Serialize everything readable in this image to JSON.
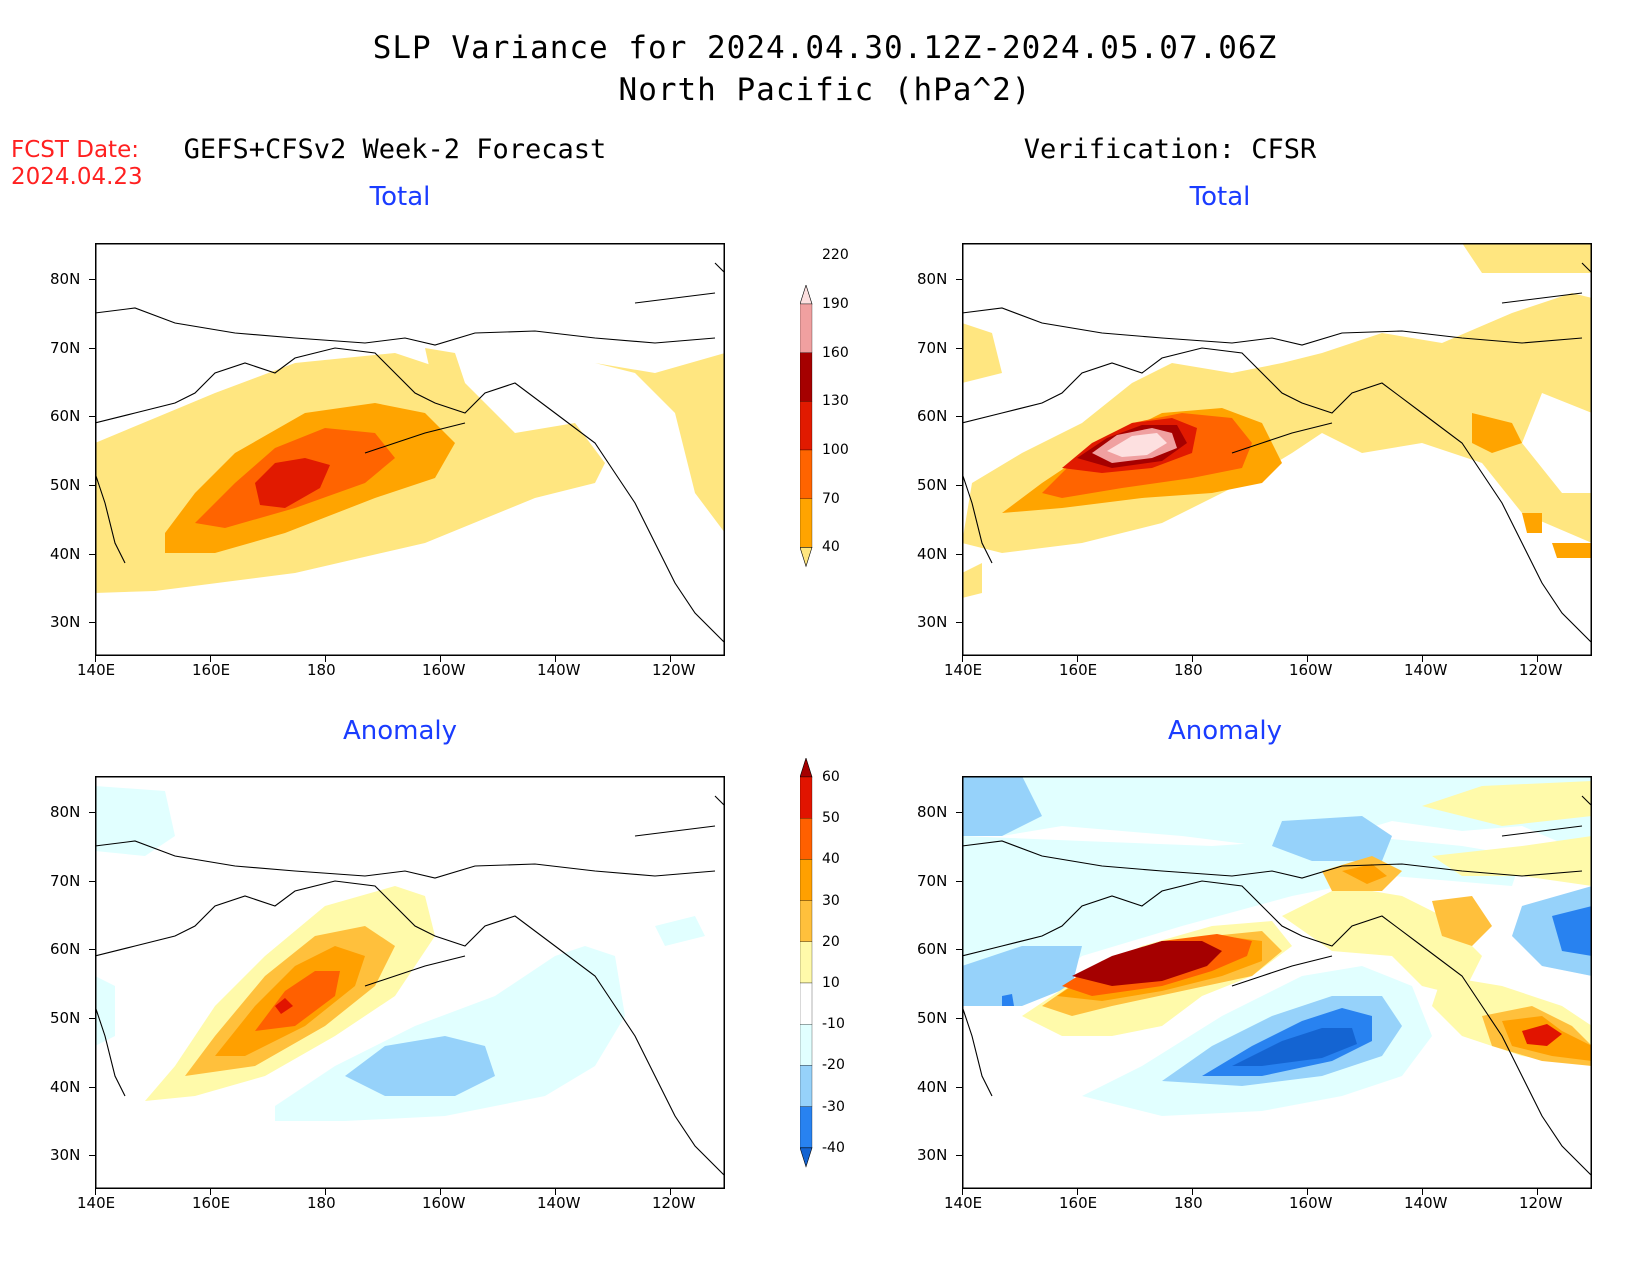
{
  "title": {
    "line1": "SLP Variance for 2024.04.30.12Z-2024.05.07.06Z",
    "line2": "North Pacific (hPa^2)"
  },
  "fcst_date": {
    "label": "FCST Date:",
    "value": "2024.04.23"
  },
  "left_column": {
    "title": "GEFS+CFSv2 Week-2 Forecast",
    "top_panel": "Total",
    "bottom_panel": "Anomaly"
  },
  "right_column": {
    "title": "Verification: CFSR",
    "top_panel": "Total",
    "bottom_panel": "Anomaly"
  },
  "axes": {
    "lat_labels": [
      "80N",
      "70N",
      "60N",
      "50N",
      "40N",
      "30N"
    ],
    "lon_labels": [
      "140E",
      "160E",
      "180",
      "160W",
      "140W",
      "120W"
    ]
  },
  "colorbar_total": {
    "levels": [
      "40",
      "70",
      "100",
      "130",
      "160",
      "190",
      "220"
    ],
    "colors": [
      "#ffe680",
      "#ffa400",
      "#ff6400",
      "#e11a00",
      "#a50000",
      "#f0a0a0",
      "#fde0e0"
    ]
  },
  "colorbar_anomaly": {
    "levels": [
      "-40",
      "-30",
      "-20",
      "-10",
      "10",
      "20",
      "30",
      "40",
      "50",
      "60"
    ],
    "colors": [
      "#1464d2",
      "#2882f0",
      "#96d2fa",
      "#e1ffff",
      "#ffffff",
      "#fffaaa",
      "#ffc03c",
      "#ffa000",
      "#ff6000",
      "#e11400",
      "#a50000"
    ]
  }
}
